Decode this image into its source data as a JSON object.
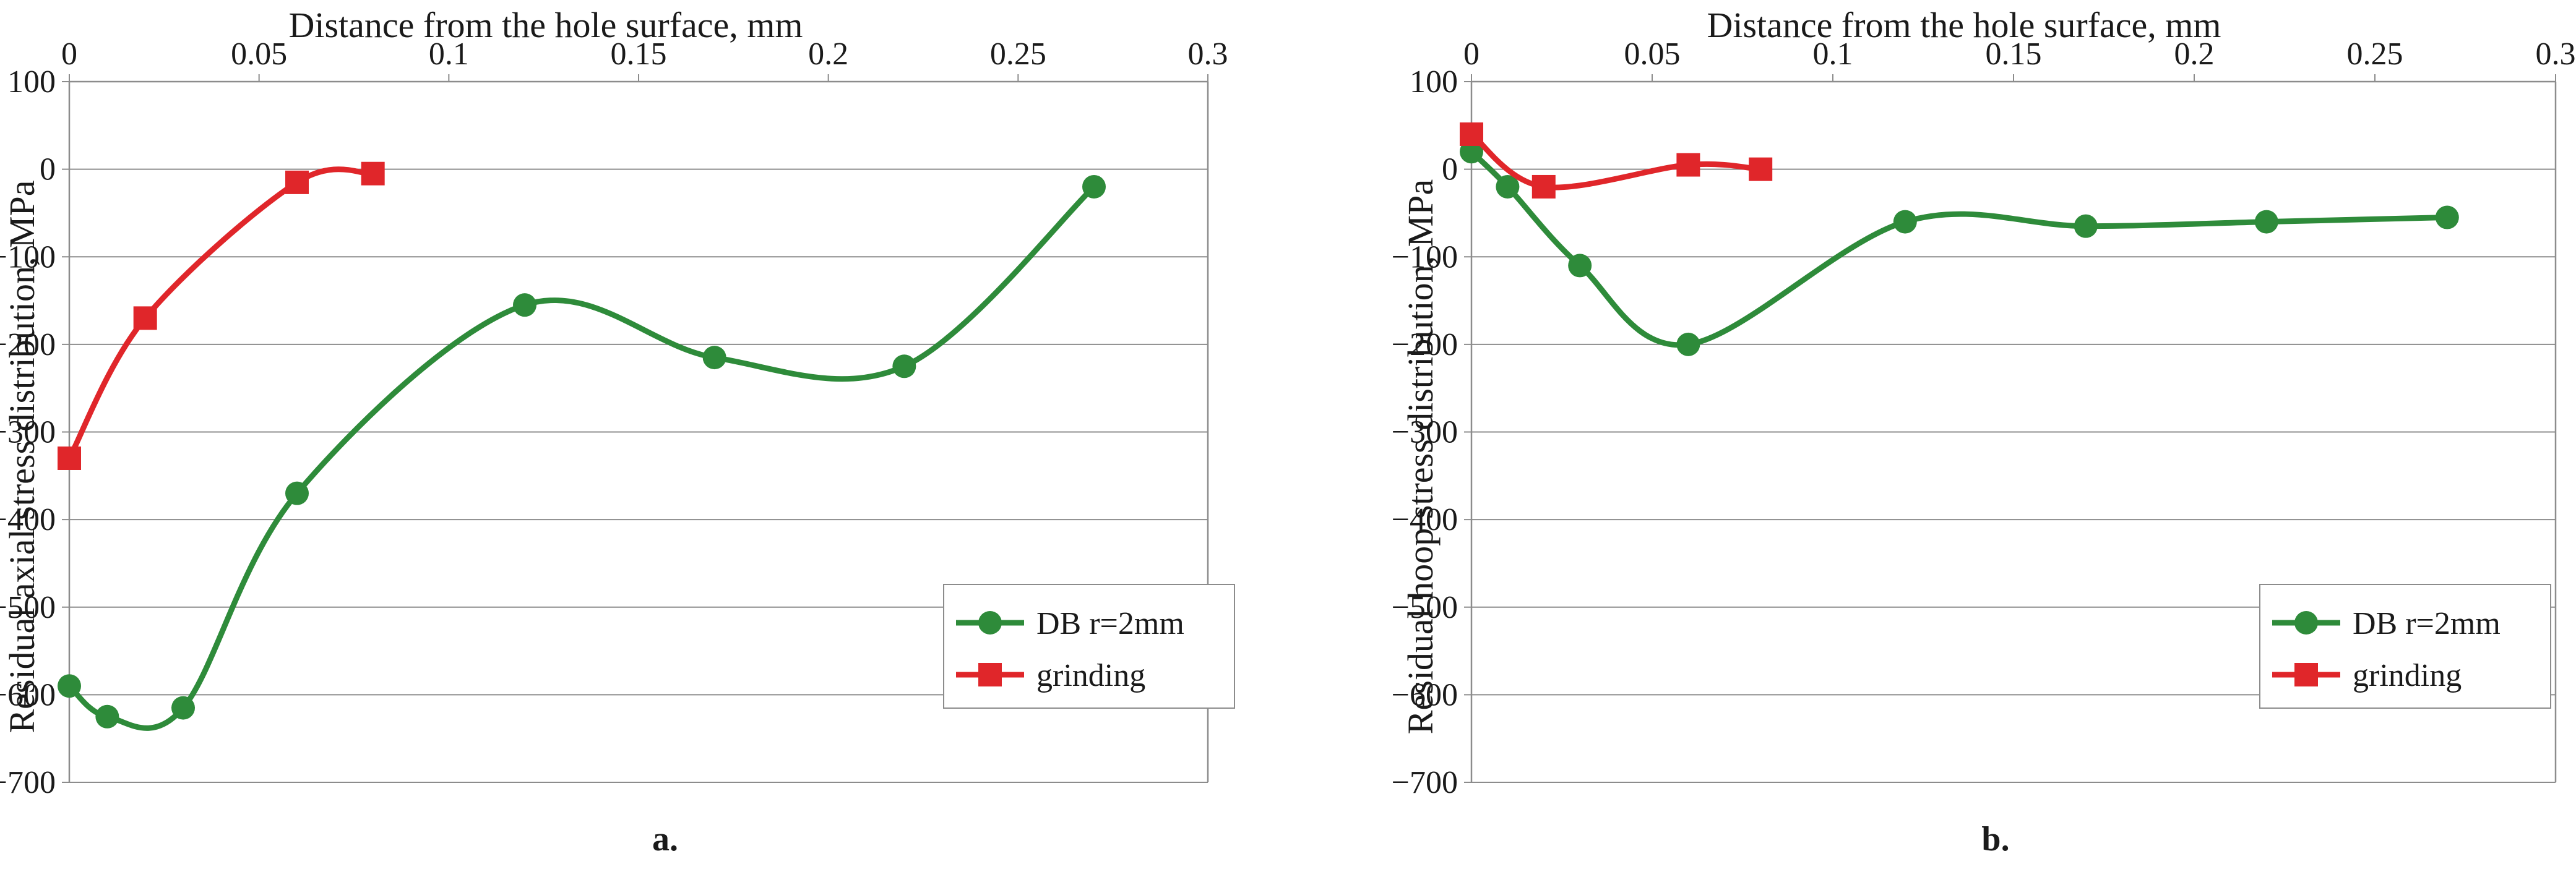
{
  "chart_data": [
    {
      "type": "line",
      "panel_label": "a.",
      "xlabel": "Distance from the hole surface, mm",
      "ylabel": "Residual axial stress distribution, MPa",
      "xlim": [
        0,
        0.3
      ],
      "ylim": [
        -700,
        100
      ],
      "x_ticks": [
        "0",
        "0.05",
        "0.1",
        "0.15",
        "0.2",
        "0.25",
        "0.3"
      ],
      "y_ticks": [
        "100",
        "0",
        "−100",
        "−200",
        "−300",
        "−400",
        "−500",
        "−600",
        "−700"
      ],
      "grid": true,
      "legend_position": "bottom-right",
      "series": [
        {
          "name": "DB r=2mm",
          "color": "#2e8b3a",
          "marker": "circle",
          "x": [
            0,
            0.01,
            0.03,
            0.06,
            0.12,
            0.17,
            0.22,
            0.27
          ],
          "y": [
            -590,
            -625,
            -615,
            -370,
            -155,
            -215,
            -225,
            -20
          ]
        },
        {
          "name": "grinding",
          "color": "#e0262a",
          "marker": "square",
          "x": [
            0,
            0.02,
            0.06,
            0.08
          ],
          "y": [
            -330,
            -170,
            -15,
            -5
          ]
        }
      ]
    },
    {
      "type": "line",
      "panel_label": "b.",
      "xlabel": "Distance from the hole surface, mm",
      "ylabel": "Residual hoop stress distribution, MPa",
      "xlim": [
        0,
        0.3
      ],
      "ylim": [
        -700,
        100
      ],
      "x_ticks": [
        "0",
        "0.05",
        "0.1",
        "0.15",
        "0.2",
        "0.25",
        "0.3"
      ],
      "y_ticks": [
        "100",
        "0",
        "−100",
        "−200",
        "−300",
        "−400",
        "−500",
        "−600",
        "−700"
      ],
      "grid": true,
      "legend_position": "bottom-right",
      "series": [
        {
          "name": "DB r=2mm",
          "color": "#2e8b3a",
          "marker": "circle",
          "x": [
            0,
            0.01,
            0.03,
            0.06,
            0.12,
            0.17,
            0.22,
            0.27
          ],
          "y": [
            20,
            -20,
            -110,
            -200,
            -60,
            -65,
            -60,
            -55
          ]
        },
        {
          "name": "grinding",
          "color": "#e0262a",
          "marker": "square",
          "x": [
            0,
            0.02,
            0.06,
            0.08
          ],
          "y": [
            40,
            -20,
            5,
            0
          ]
        }
      ]
    }
  ]
}
